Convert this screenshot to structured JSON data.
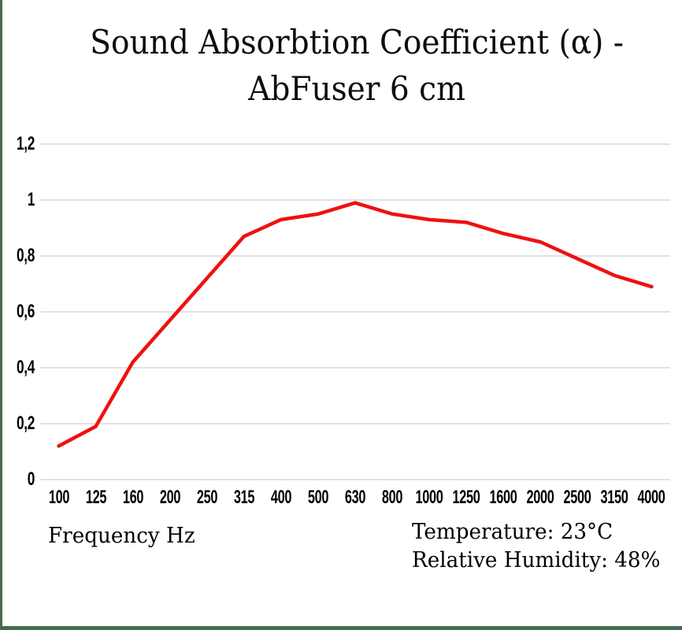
{
  "chart_data": {
    "type": "line",
    "title": "Sound Absorbtion Coefficient (α) - AbFuser 6 cm",
    "title_lines": [
      "Sound Absorbtion Coefficient (α) -",
      "AbFuser 6 cm"
    ],
    "xlabel": "Frequency Hz",
    "ylabel": "",
    "categories": [
      "100",
      "125",
      "160",
      "200",
      "250",
      "315",
      "400",
      "500",
      "630",
      "800",
      "1000",
      "1250",
      "1600",
      "2000",
      "2500",
      "3150",
      "4000"
    ],
    "values": [
      0.12,
      0.19,
      0.42,
      0.57,
      0.72,
      0.87,
      0.93,
      0.95,
      0.99,
      0.95,
      0.93,
      0.92,
      0.88,
      0.85,
      0.79,
      0.73,
      0.69
    ],
    "ylim": [
      0,
      1.2
    ],
    "ytick_values": [
      0,
      0.2,
      0.4,
      0.6,
      0.8,
      1,
      1.2
    ],
    "ytick_labels": [
      "0",
      "0,2",
      "0,4",
      "0,6",
      "0,8",
      "1",
      "1,2"
    ],
    "decimal_separator": ",",
    "grid": true,
    "legend": "none",
    "annotations": [
      "Temperature: 23°C",
      "Relative Humidity: 48%"
    ],
    "colors": {
      "line": "#ee1111",
      "gridline": "#d9d9d9",
      "text": "#000000",
      "frame_border": "#496b52",
      "background": "#ffffff"
    }
  }
}
